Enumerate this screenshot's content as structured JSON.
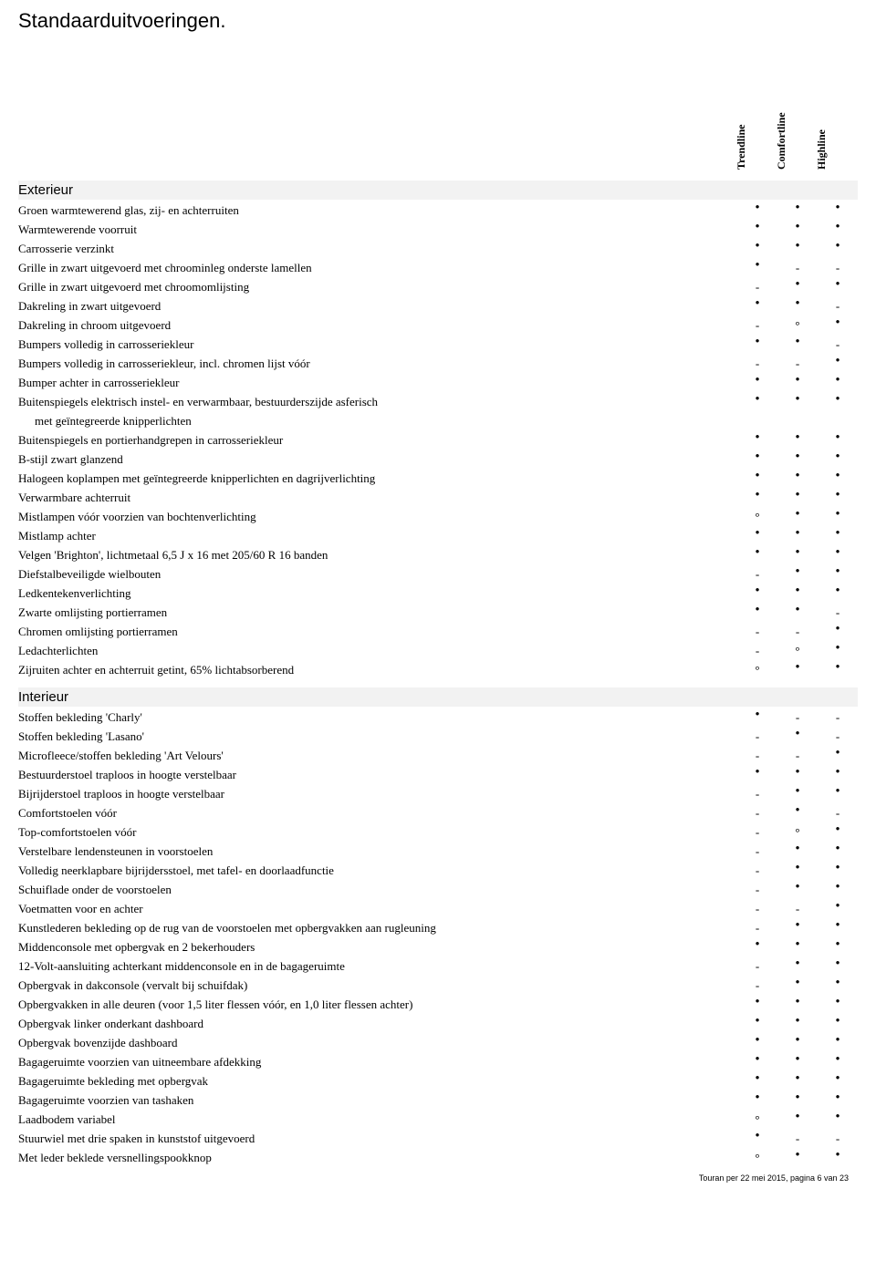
{
  "title": "Standaarduitvoeringen.",
  "trims": [
    "Trendline",
    "Comfortline",
    "Highline"
  ],
  "marks": {
    "dot": "●",
    "dash": "-",
    "circle": "°"
  },
  "sections": [
    {
      "name": "Exterieur",
      "rows": [
        {
          "label": "Groen warmtewerend glas, zij- en achterruiten",
          "m": [
            "dot",
            "dot",
            "dot"
          ]
        },
        {
          "label": "Warmtewerende voorruit",
          "m": [
            "dot",
            "dot",
            "dot"
          ]
        },
        {
          "label": "Carrosserie verzinkt",
          "m": [
            "dot",
            "dot",
            "dot"
          ]
        },
        {
          "label": "Grille in zwart uitgevoerd met chroominleg onderste lamellen",
          "m": [
            "dot",
            "dash",
            "dash"
          ]
        },
        {
          "label": "Grille in zwart uitgevoerd met chroomomlijsting",
          "m": [
            "dash",
            "dot",
            "dot"
          ]
        },
        {
          "label": "Dakreling in zwart uitgevoerd",
          "m": [
            "dot",
            "dot",
            "dash"
          ]
        },
        {
          "label": "Dakreling in chroom uitgevoerd",
          "m": [
            "dash",
            "circle",
            "dot"
          ]
        },
        {
          "label": "Bumpers volledig in carrosseriekleur",
          "m": [
            "dot",
            "dot",
            "dash"
          ]
        },
        {
          "label": "Bumpers volledig in carrosseriekleur, incl. chromen lijst vóór",
          "m": [
            "dash",
            "dash",
            "dot"
          ]
        },
        {
          "label": "Bumper achter in carrosseriekleur",
          "m": [
            "dot",
            "dot",
            "dot"
          ]
        },
        {
          "label": "Buitenspiegels elektrisch instel- en verwarmbaar, bestuurderszijde asferisch",
          "sub": "met geïntegreerde knipperlichten",
          "m": [
            "dot",
            "dot",
            "dot"
          ]
        },
        {
          "label": "Buitenspiegels en portierhandgrepen in carrosseriekleur",
          "m": [
            "dot",
            "dot",
            "dot"
          ]
        },
        {
          "label": "B-stijl zwart glanzend",
          "m": [
            "dot",
            "dot",
            "dot"
          ]
        },
        {
          "label": "Halogeen koplampen met geïntegreerde knipperlichten en dagrijverlichting",
          "m": [
            "dot",
            "dot",
            "dot"
          ]
        },
        {
          "label": "Verwarmbare achterruit",
          "m": [
            "dot",
            "dot",
            "dot"
          ]
        },
        {
          "label": "Mistlampen vóór voorzien van bochtenverlichting",
          "m": [
            "circle",
            "dot",
            "dot"
          ]
        },
        {
          "label": "Mistlamp achter",
          "m": [
            "dot",
            "dot",
            "dot"
          ]
        },
        {
          "label": "Velgen 'Brighton', lichtmetaal 6,5 J x 16 met 205/60 R 16 banden",
          "m": [
            "dot",
            "dot",
            "dot"
          ]
        },
        {
          "label": "Diefstalbeveiligde wielbouten",
          "m": [
            "dash",
            "dot",
            "dot"
          ]
        },
        {
          "label": "Ledkentekenverlichting",
          "m": [
            "dot",
            "dot",
            "dot"
          ]
        },
        {
          "label": "Zwarte omlijsting portierramen",
          "m": [
            "dot",
            "dot",
            "dash"
          ]
        },
        {
          "label": "Chromen omlijsting portierramen",
          "m": [
            "dash",
            "dash",
            "dot"
          ]
        },
        {
          "label": "Ledachterlichten",
          "m": [
            "dash",
            "circle",
            "dot"
          ]
        },
        {
          "label": "Zijruiten achter en achterruit getint, 65% lichtabsorberend",
          "m": [
            "circle",
            "dot",
            "dot"
          ]
        }
      ]
    },
    {
      "name": "Interieur",
      "rows": [
        {
          "label": "Stoffen bekleding 'Charly'",
          "m": [
            "dot",
            "dash",
            "dash"
          ]
        },
        {
          "label": "Stoffen bekleding 'Lasano'",
          "m": [
            "dash",
            "dot",
            "dash"
          ]
        },
        {
          "label": "Microfleece/stoffen bekleding 'Art Velours'",
          "m": [
            "dash",
            "dash",
            "dot"
          ]
        },
        {
          "label": "Bestuurderstoel traploos in hoogte verstelbaar",
          "m": [
            "dot",
            "dot",
            "dot"
          ]
        },
        {
          "label": "Bijrijderstoel traploos in hoogte verstelbaar",
          "m": [
            "dash",
            "dot",
            "dot"
          ]
        },
        {
          "label": "Comfortstoelen vóór",
          "m": [
            "dash",
            "dot",
            "dash"
          ]
        },
        {
          "label": "Top-comfortstoelen vóór",
          "m": [
            "dash",
            "circle",
            "dot"
          ]
        },
        {
          "label": "Verstelbare lendensteunen in voorstoelen",
          "m": [
            "dash",
            "dot",
            "dot"
          ]
        },
        {
          "label": "Volledig neerklapbare bijrijdersstoel, met tafel- en doorlaadfunctie",
          "m": [
            "dash",
            "dot",
            "dot"
          ]
        },
        {
          "label": "Schuiflade onder de voorstoelen",
          "m": [
            "dash",
            "dot",
            "dot"
          ]
        },
        {
          "label": "Voetmatten voor en achter",
          "m": [
            "dash",
            "dash",
            "dot"
          ]
        },
        {
          "label": "Kunstlederen bekleding op de rug van de voorstoelen met opbergvakken aan rugleuning",
          "m": [
            "dash",
            "dot",
            "dot"
          ]
        },
        {
          "label": "Middenconsole met opbergvak en 2 bekerhouders",
          "m": [
            "dot",
            "dot",
            "dot"
          ]
        },
        {
          "label": "12-Volt-aansluiting achterkant middenconsole en in de bagageruimte",
          "m": [
            "dash",
            "dot",
            "dot"
          ]
        },
        {
          "label": "Opbergvak in dakconsole (vervalt bij schuifdak)",
          "m": [
            "dash",
            "dot",
            "dot"
          ]
        },
        {
          "label": "Opbergvakken in alle deuren (voor 1,5 liter flessen vóór, en 1,0 liter flessen achter)",
          "m": [
            "dot",
            "dot",
            "dot"
          ]
        },
        {
          "label": "Opbergvak linker onderkant dashboard",
          "m": [
            "dot",
            "dot",
            "dot"
          ]
        },
        {
          "label": "Opbergvak bovenzijde dashboard",
          "m": [
            "dot",
            "dot",
            "dot"
          ]
        },
        {
          "label": "Bagageruimte voorzien van uitneembare afdekking",
          "m": [
            "dot",
            "dot",
            "dot"
          ]
        },
        {
          "label": "Bagageruimte bekleding met opbergvak",
          "m": [
            "dot",
            "dot",
            "dot"
          ]
        },
        {
          "label": "Bagageruimte voorzien van tashaken",
          "m": [
            "dot",
            "dot",
            "dot"
          ]
        },
        {
          "label": "Laadbodem variabel",
          "m": [
            "circle",
            "dot",
            "dot"
          ]
        },
        {
          "label": "Stuurwiel met drie spaken in kunststof uitgevoerd",
          "m": [
            "dot",
            "dash",
            "dash"
          ]
        },
        {
          "label": "Met leder beklede versnellingspookknop",
          "m": [
            "circle",
            "dot",
            "dot"
          ]
        }
      ]
    }
  ],
  "footer": "Touran per 22 mei 2015, pagina 6 van 23"
}
